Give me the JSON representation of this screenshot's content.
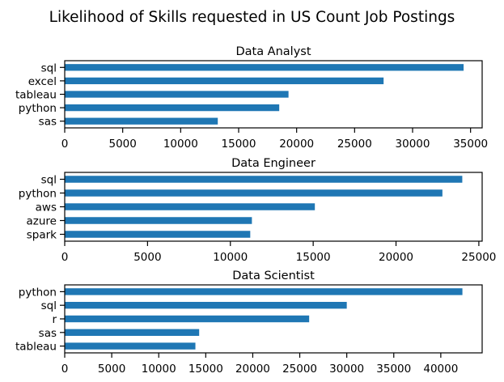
{
  "figure": {
    "title": "Likelihood of Skills requested in US Count Job Postings",
    "bar_color": "#1f77b4"
  },
  "chart_data": [
    {
      "type": "bar",
      "orientation": "horizontal",
      "title": "Data Analyst",
      "xlabel": "",
      "ylabel": "",
      "categories": [
        "sql",
        "excel",
        "tableau",
        "python",
        "sas"
      ],
      "values": [
        34400,
        27500,
        19300,
        18500,
        13200
      ],
      "xlim": [
        0,
        36000
      ],
      "xticks": [
        0,
        5000,
        10000,
        15000,
        20000,
        25000,
        30000,
        35000
      ],
      "grid": false
    },
    {
      "type": "bar",
      "orientation": "horizontal",
      "title": "Data Engineer",
      "xlabel": "",
      "ylabel": "",
      "categories": [
        "sql",
        "python",
        "aws",
        "azure",
        "spark"
      ],
      "values": [
        24000,
        22800,
        15100,
        11300,
        11200
      ],
      "xlim": [
        0,
        25200
      ],
      "xticks": [
        0,
        5000,
        10000,
        15000,
        20000,
        25000
      ],
      "grid": false
    },
    {
      "type": "bar",
      "orientation": "horizontal",
      "title": "Data Scientist",
      "xlabel": "",
      "ylabel": "",
      "categories": [
        "python",
        "sql",
        "r",
        "sas",
        "tableau"
      ],
      "values": [
        42300,
        30000,
        26000,
        14300,
        13900
      ],
      "xlim": [
        0,
        44400
      ],
      "xticks": [
        0,
        5000,
        10000,
        15000,
        20000,
        25000,
        30000,
        35000,
        40000
      ],
      "grid": false
    }
  ]
}
